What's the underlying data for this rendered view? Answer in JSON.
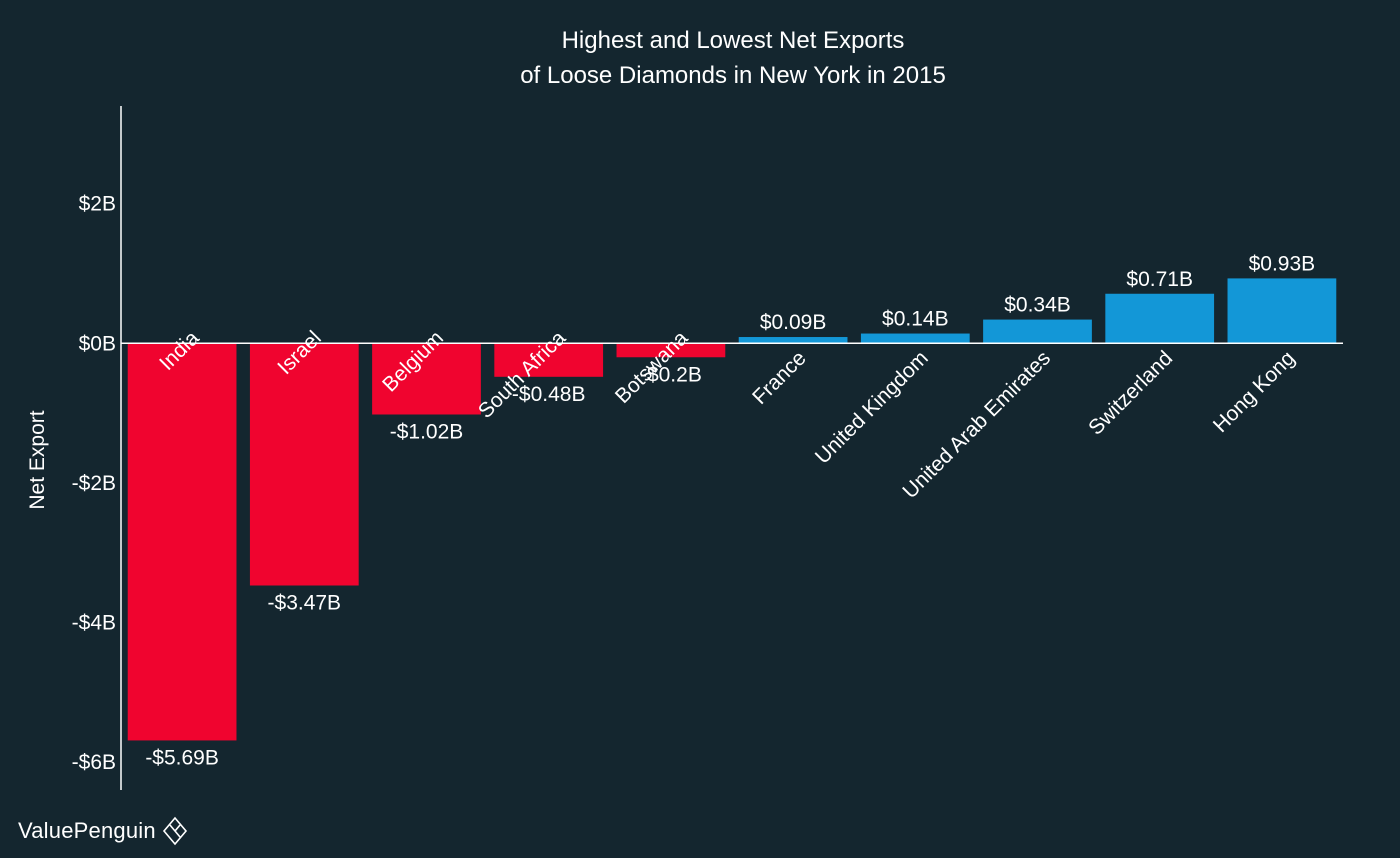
{
  "brand": {
    "name": "ValuePenguin",
    "icon": "diamond-logo-icon"
  },
  "colors": {
    "background": "#14262f",
    "negative": "#f0042f",
    "positive": "#1397d7",
    "axis": "#ffffff"
  },
  "chart_data": {
    "type": "bar",
    "title": [
      "Highest and Lowest Net Exports",
      "of Loose Diamonds in New York in 2015"
    ],
    "xlabel": "",
    "ylabel": "Net Export",
    "ylim": [
      -6.4,
      3.4
    ],
    "yticks": [
      {
        "value": 2,
        "label": "$2B"
      },
      {
        "value": 0,
        "label": "$0B"
      },
      {
        "value": -2,
        "label": "-$2B"
      },
      {
        "value": -4,
        "label": "-$4B"
      },
      {
        "value": -6,
        "label": "-$6B"
      }
    ],
    "categories": [
      "India",
      "Israel",
      "Belgium",
      "South Africa",
      "Botswana",
      "France",
      "United Kingdom",
      "United Arab Emirates",
      "Switzerland",
      "Hong Kong"
    ],
    "values": [
      -5.69,
      -3.47,
      -1.02,
      -0.48,
      -0.2,
      0.09,
      0.14,
      0.34,
      0.71,
      0.93
    ],
    "value_labels": [
      "-$5.69B",
      "-$3.47B",
      "-$1.02B",
      "-$0.48B",
      "-$0.2B",
      "$0.09B",
      "$0.14B",
      "$0.34B",
      "$0.71B",
      "$0.93B"
    ],
    "grid": false,
    "legend": "none"
  }
}
